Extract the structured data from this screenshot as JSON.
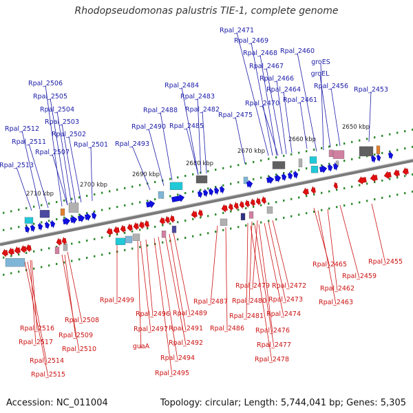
{
  "title": "Rhodopseudomonas palustris TIE-1, complete genome",
  "accession": "Accession: NC_011004",
  "summary": "Topology: circular; Length: 5,744,041 bp; Genes: 5,305",
  "colors": {
    "forward": "#1010e0",
    "reverse": "#e01010",
    "axis": "#808080",
    "tick": "#2e8b2e",
    "top_label": "#1a1aa8",
    "bottom_label": "#cc1010"
  },
  "scale_ticks": [
    "2650 kbp",
    "2660 kbp",
    "2670 kbp",
    "2680 kbp",
    "2690 kbp",
    "2700 kbp",
    "2710 kbp"
  ],
  "top_genes": [
    "Rpal_2471",
    "Rpal_2469",
    "Rpal_2468",
    "Rpal_2460",
    "Rpal_2467",
    "groES",
    "groEL",
    "Rpal_2466",
    "Rpal_2464",
    "Rpal_2456",
    "Rpal_2453",
    "Rpal_2470",
    "Rpal_2461",
    "Rpal_2484",
    "Rpal_2483",
    "Rpal_2488",
    "Rpal_2482",
    "Rpal_2475",
    "Rpal_2490",
    "Rpal_2485",
    "Rpal_2493",
    "Rpal_2506",
    "Rpal_2505",
    "Rpal_2504",
    "Rpal_2503",
    "Rpal_2512",
    "Rpal_2502",
    "Rpal_2511",
    "Rpal_2501",
    "Rpal_2507",
    "Rpal_2513"
  ],
  "bottom_genes": [
    "Rpal_2455",
    "Rpal_2465",
    "Rpal_2459",
    "Rpal_2462",
    "Rpal_2463",
    "Rpal_2472",
    "Rpal_2479",
    "Rpal_2473",
    "Rpal_2480",
    "Rpal_2474",
    "Rpal_2481",
    "Rpal_2476",
    "Rpal_2477",
    "Rpal_2478",
    "Rpal_2487",
    "Rpal_2486",
    "Rpal_2499",
    "Rpal_2489",
    "Rpal_2496",
    "Rpal_2491",
    "Rpal_2497",
    "Rpal_2492",
    "guaA",
    "Rpal_2494",
    "Rpal_2495",
    "Rpal_2508",
    "Rpal_2509",
    "Rpal_2510",
    "Rpal_2516",
    "Rpal_2517",
    "Rpal_2514",
    "Rpal_2515"
  ]
}
